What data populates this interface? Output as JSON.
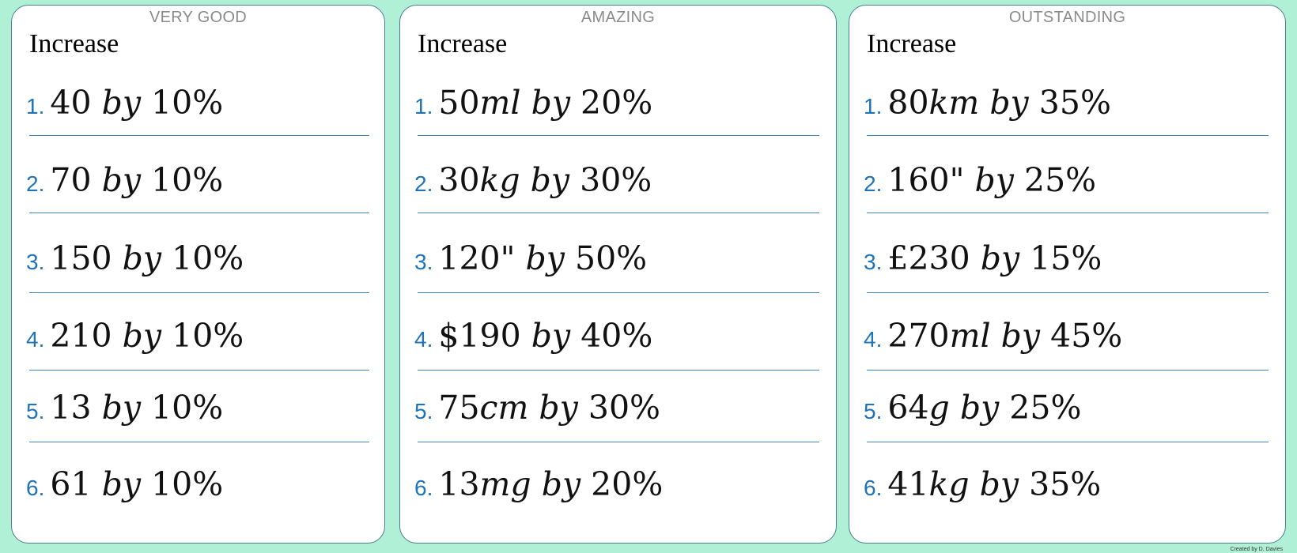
{
  "cards": [
    {
      "level": "VERY GOOD",
      "heading": "Increase",
      "questions": [
        {
          "number": "1.",
          "amount": "40",
          "by": "by",
          "percent": "10%"
        },
        {
          "number": "2.",
          "amount": "70",
          "by": "by",
          "percent": "10%"
        },
        {
          "number": "3.",
          "amount": "150",
          "by": "by",
          "percent": "10%"
        },
        {
          "number": "4.",
          "amount": "210",
          "by": "by",
          "percent": "10%"
        },
        {
          "number": "5.",
          "amount": "13",
          "by": "by",
          "percent": "10%"
        },
        {
          "number": "6.",
          "amount": "61",
          "by": "by",
          "percent": "10%"
        }
      ]
    },
    {
      "level": "AMAZING",
      "heading": "Increase",
      "questions": [
        {
          "number": "1.",
          "amount": "50",
          "unit": "ml",
          "by": "by",
          "percent": "20%"
        },
        {
          "number": "2.",
          "amount": "30",
          "unit": "kg",
          "by": "by",
          "percent": "30%"
        },
        {
          "number": "3.",
          "amount": "120\"",
          "by": "by",
          "percent": "50%"
        },
        {
          "number": "4.",
          "amount": "$190",
          "by": "by",
          "percent": "40%"
        },
        {
          "number": "5.",
          "amount": "75",
          "unit": "cm",
          "by": "by",
          "percent": "30%"
        },
        {
          "number": "6.",
          "amount": "13",
          "unit": "mg",
          "by": "by",
          "percent": "20%"
        }
      ]
    },
    {
      "level": "OUTSTANDING",
      "heading": "Increase",
      "questions": [
        {
          "number": "1.",
          "amount": "80",
          "unit": "km",
          "by": "by",
          "percent": "35%"
        },
        {
          "number": "2.",
          "amount": "160\"",
          "by": "by",
          "percent": "25%"
        },
        {
          "number": "3.",
          "amount": "£230",
          "by": "by",
          "percent": "15%"
        },
        {
          "number": "4.",
          "amount": "270",
          "unit": "ml",
          "by": "by",
          "percent": "45%"
        },
        {
          "number": "5.",
          "amount": "64",
          "unit": "g",
          "by": "by",
          "percent": "25%"
        },
        {
          "number": "6.",
          "amount": "41",
          "unit": "kg",
          "by": "by",
          "percent": "35%"
        }
      ]
    }
  ],
  "credit": "Created by D. Davies"
}
